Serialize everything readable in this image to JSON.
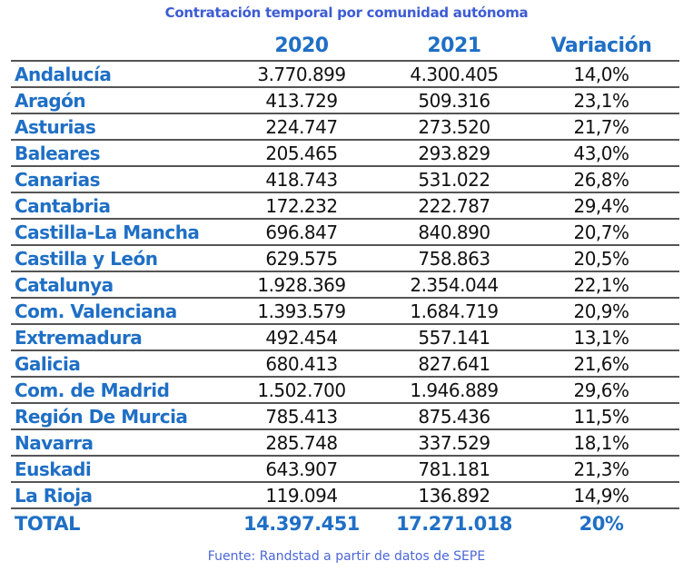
{
  "title": "Contratación temporal por comunidad autónoma",
  "columns": [
    "2020",
    "2021",
    "Variación"
  ],
  "rows": [
    {
      "name": "Andalucía",
      "y2020": "3.770.899",
      "y2021": "4.300.405",
      "var": "14,0%"
    },
    {
      "name": "Aragón",
      "y2020": "413.729",
      "y2021": "509.316",
      "var": "23,1%"
    },
    {
      "name": "Asturias",
      "y2020": "224.747",
      "y2021": "273.520",
      "var": "21,7%"
    },
    {
      "name": "Baleares",
      "y2020": "205.465",
      "y2021": "293.829",
      "var": "43,0%"
    },
    {
      "name": "Canarias",
      "y2020": "418.743",
      "y2021": "531.022",
      "var": "26,8%"
    },
    {
      "name": "Cantabria",
      "y2020": "172.232",
      "y2021": "222.787",
      "var": "29,4%"
    },
    {
      "name": "Castilla-La Mancha",
      "y2020": "696.847",
      "y2021": "840.890",
      "var": "20,7%"
    },
    {
      "name": "Castilla y León",
      "y2020": "629.575",
      "y2021": "758.863",
      "var": "20,5%"
    },
    {
      "name": "Catalunya",
      "y2020": "1.928.369",
      "y2021": "2.354.044",
      "var": "22,1%"
    },
    {
      "name": "Com. Valenciana",
      "y2020": "1.393.579",
      "y2021": "1.684.719",
      "var": "20,9%"
    },
    {
      "name": "Extremadura",
      "y2020": "492.454",
      "y2021": "557.141",
      "var": "13,1%"
    },
    {
      "name": "Galicia",
      "y2020": "680.413",
      "y2021": "827.641",
      "var": "21,6%"
    },
    {
      "name": "Com. de Madrid",
      "y2020": "1.502.700",
      "y2021": "1.946.889",
      "var": "29,6%"
    },
    {
      "name": "Región De Murcia",
      "y2020": "785.413",
      "y2021": "875.436",
      "var": "11,5%"
    },
    {
      "name": "Navarra",
      "y2020": "285.748",
      "y2021": "337.529",
      "var": "18,1%"
    },
    {
      "name": "Euskadi",
      "y2020": "643.907",
      "y2021": "781.181",
      "var": "21,3%"
    },
    {
      "name": "La Rioja",
      "y2020": "119.094",
      "y2021": "136.892",
      "var": "14,9%"
    }
  ],
  "total": {
    "name": "TOTAL",
    "y2020": "14.397.451",
    "y2021": "17.271.018",
    "var": "20%"
  },
  "footer": "Fuente: Randstad a partir de datos de SEPE",
  "colors": {
    "header": "#1f6fc5",
    "title": "#3d5cd4",
    "rule": "#555555"
  }
}
